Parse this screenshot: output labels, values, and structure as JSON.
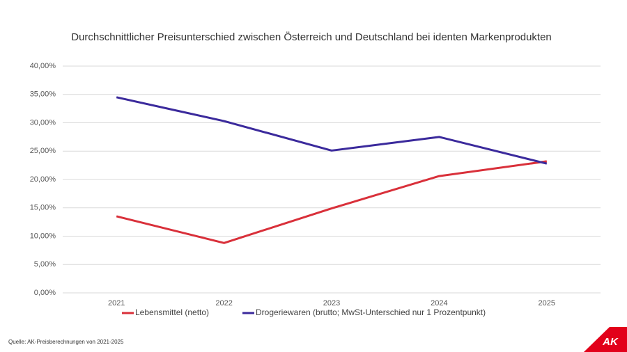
{
  "chart_data": {
    "type": "line",
    "title": "Durchschnittlicher Preisunterschied zwischen Österreich und Deutschland bei identen Markenprodukten",
    "categories": [
      "2021",
      "2022",
      "2023",
      "2024",
      "2025"
    ],
    "series": [
      {
        "name": "Lebensmittel (netto)",
        "color": "#d9303a",
        "values": [
          13.5,
          8.8,
          14.9,
          20.6,
          23.2
        ]
      },
      {
        "name": "Drogeriewaren (brutto; MwSt-Unterschied nur 1 Prozentpunkt)",
        "color": "#3b2a9c",
        "values": [
          34.5,
          30.3,
          25.1,
          27.5,
          22.8
        ]
      }
    ],
    "ylim": [
      0,
      40
    ],
    "yticks": [
      {
        "value": 0,
        "label": "0,00%"
      },
      {
        "value": 5,
        "label": "5,00%"
      },
      {
        "value": 10,
        "label": "10,00%"
      },
      {
        "value": 15,
        "label": "15,00%"
      },
      {
        "value": 20,
        "label": "20,00%"
      },
      {
        "value": 25,
        "label": "25,00%"
      },
      {
        "value": 30,
        "label": "30,00%"
      },
      {
        "value": 35,
        "label": "35,00%"
      },
      {
        "value": 40,
        "label": "40,00%"
      }
    ],
    "grid": true,
    "legend": "bottom"
  },
  "source": "Quelle: AK-Preisberechnungen von 2021-2025",
  "logo": "AK"
}
